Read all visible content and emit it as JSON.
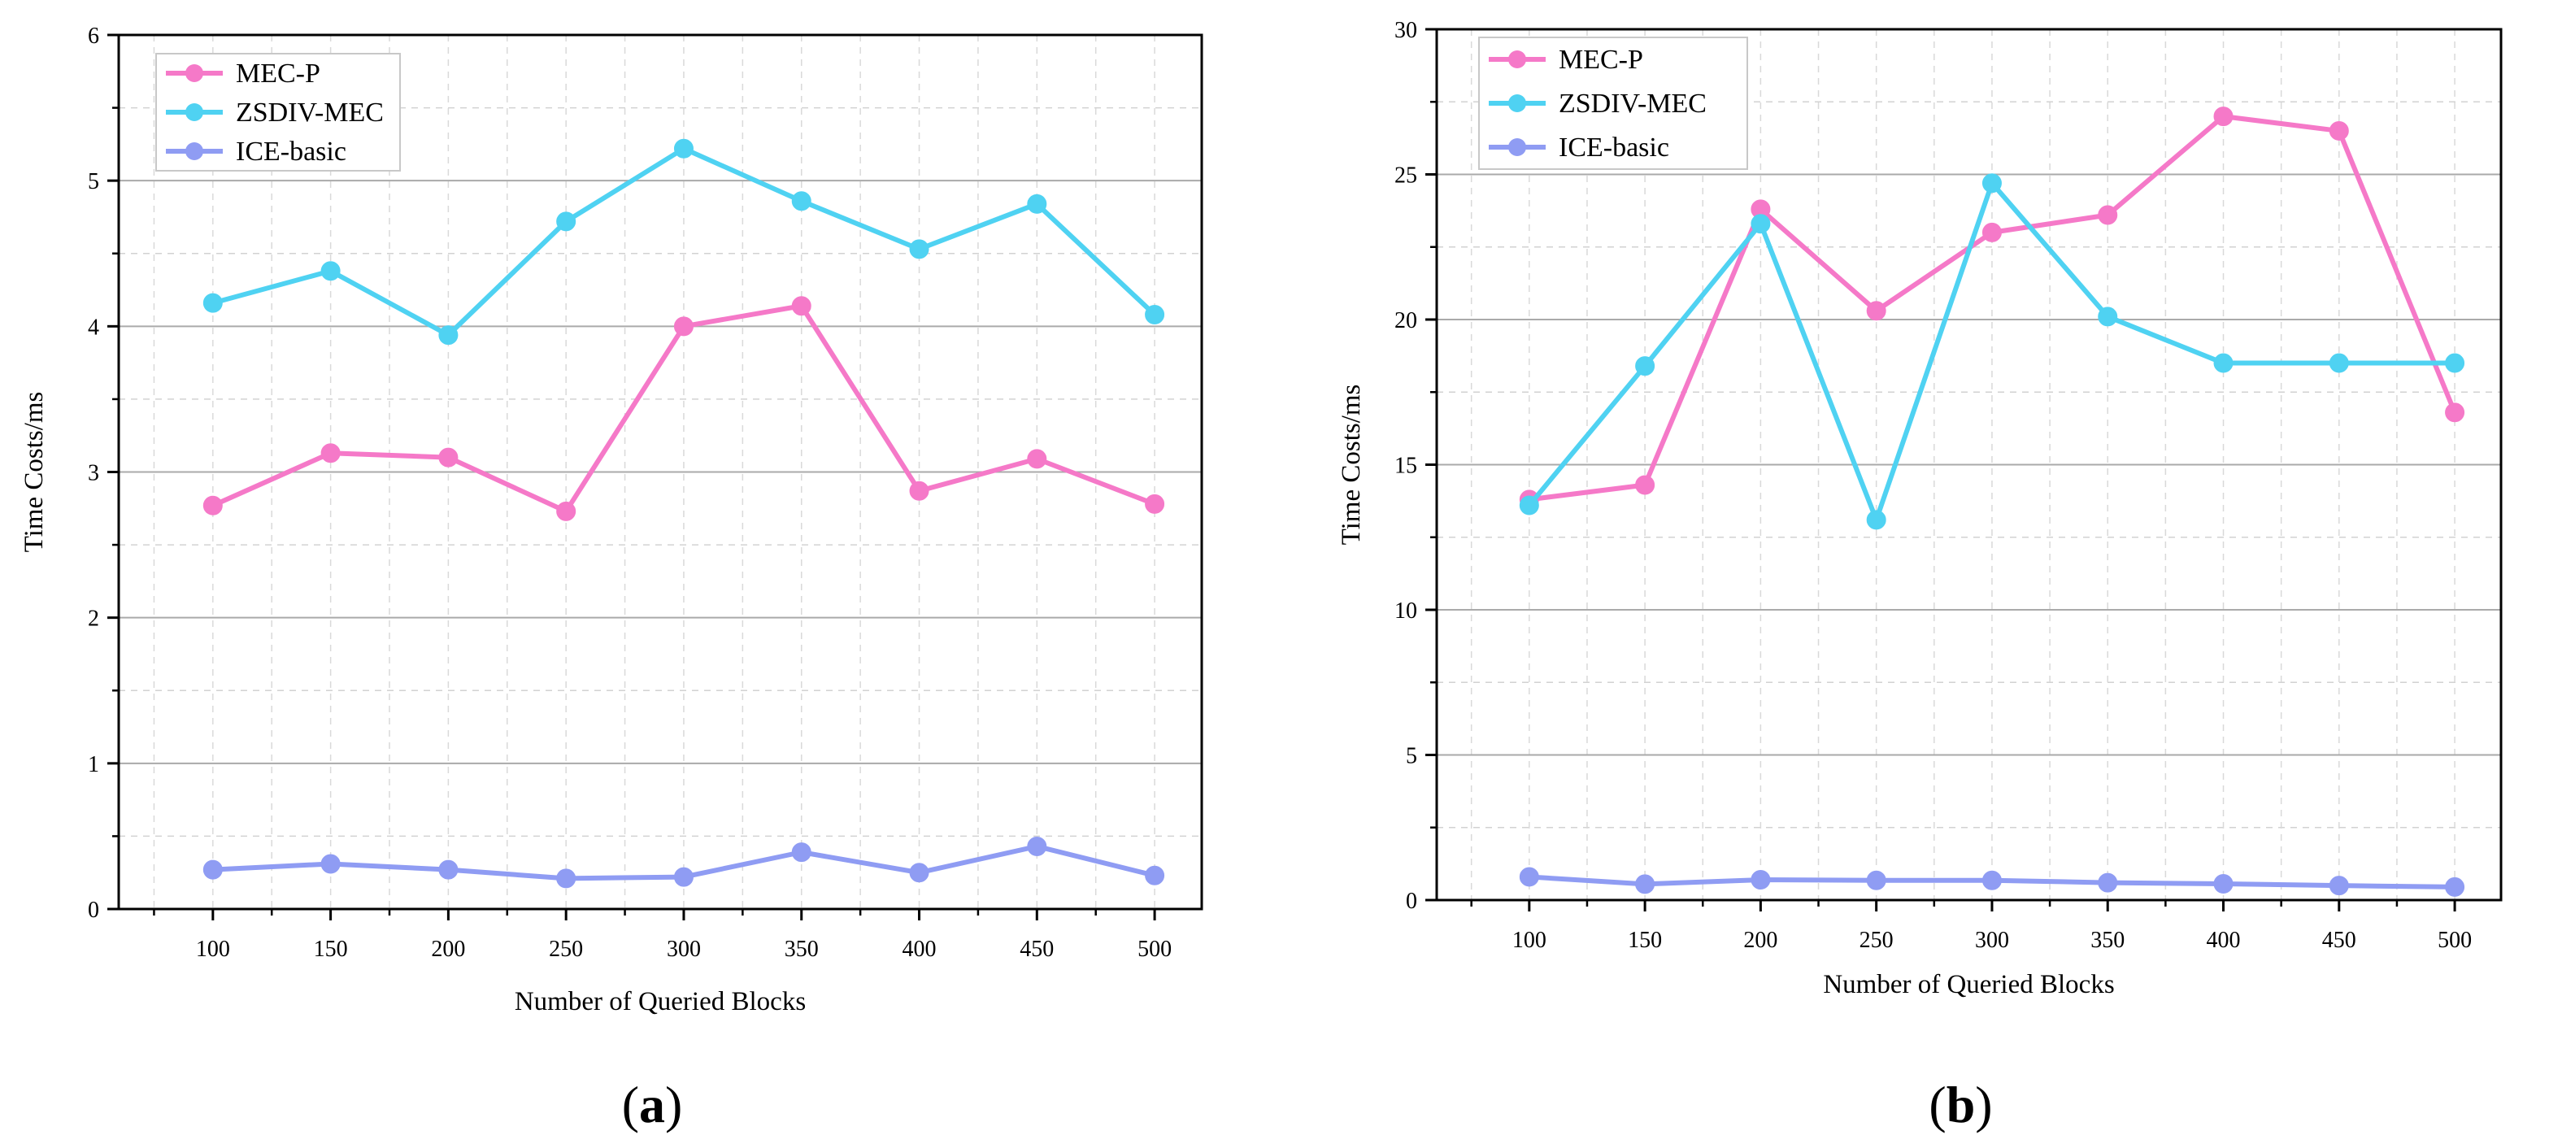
{
  "figure": {
    "panels": [
      "(a)",
      "(b)"
    ]
  },
  "colors": {
    "mec_p": "#f579c8",
    "zsdiv_mec": "#4fd2f2",
    "ice_basic": "#8f9cf3"
  },
  "chart_data": [
    {
      "type": "line",
      "panel_label": "(a)",
      "title": "",
      "xlabel": "Number of Queried Blocks",
      "ylabel": "Time Costs/ms",
      "x": [
        100,
        150,
        200,
        250,
        300,
        350,
        400,
        450,
        500
      ],
      "xlim": [
        60,
        520
      ],
      "ylim": [
        0,
        6
      ],
      "yticks": [
        0,
        1,
        2,
        3,
        4,
        5,
        6
      ],
      "grid": true,
      "legend": "top-left",
      "series": [
        {
          "name": "MEC-P",
          "color": "#f579c8",
          "values": [
            2.77,
            3.13,
            3.1,
            2.73,
            4.0,
            4.14,
            2.87,
            3.09,
            2.78
          ]
        },
        {
          "name": "ZSDIV-MEC",
          "color": "#4fd2f2",
          "values": [
            4.16,
            4.38,
            3.94,
            4.72,
            5.22,
            4.86,
            4.53,
            4.84,
            4.08
          ]
        },
        {
          "name": "ICE-basic",
          "color": "#8f9cf3",
          "values": [
            0.27,
            0.31,
            0.27,
            0.21,
            0.22,
            0.39,
            0.25,
            0.43,
            0.23
          ]
        }
      ]
    },
    {
      "type": "line",
      "panel_label": "(b)",
      "title": "",
      "xlabel": "Number of Queried Blocks",
      "ylabel": "Time Costs/ms",
      "x": [
        100,
        150,
        200,
        250,
        300,
        350,
        400,
        450,
        500
      ],
      "xlim": [
        60,
        520
      ],
      "ylim": [
        0,
        30
      ],
      "yticks": [
        0,
        5,
        10,
        15,
        20,
        25,
        30
      ],
      "grid": true,
      "legend": "top-left",
      "series": [
        {
          "name": "MEC-P",
          "color": "#f579c8",
          "values": [
            13.8,
            14.3,
            23.8,
            20.3,
            23.0,
            23.6,
            27.0,
            26.5,
            16.8
          ]
        },
        {
          "name": "ZSDIV-MEC",
          "color": "#4fd2f2",
          "values": [
            13.6,
            18.4,
            23.3,
            13.1,
            24.7,
            20.1,
            18.5,
            18.5,
            18.5
          ]
        },
        {
          "name": "ICE-basic",
          "color": "#8f9cf3",
          "values": [
            0.8,
            0.55,
            0.7,
            0.68,
            0.68,
            0.6,
            0.56,
            0.5,
            0.45
          ]
        }
      ]
    }
  ]
}
